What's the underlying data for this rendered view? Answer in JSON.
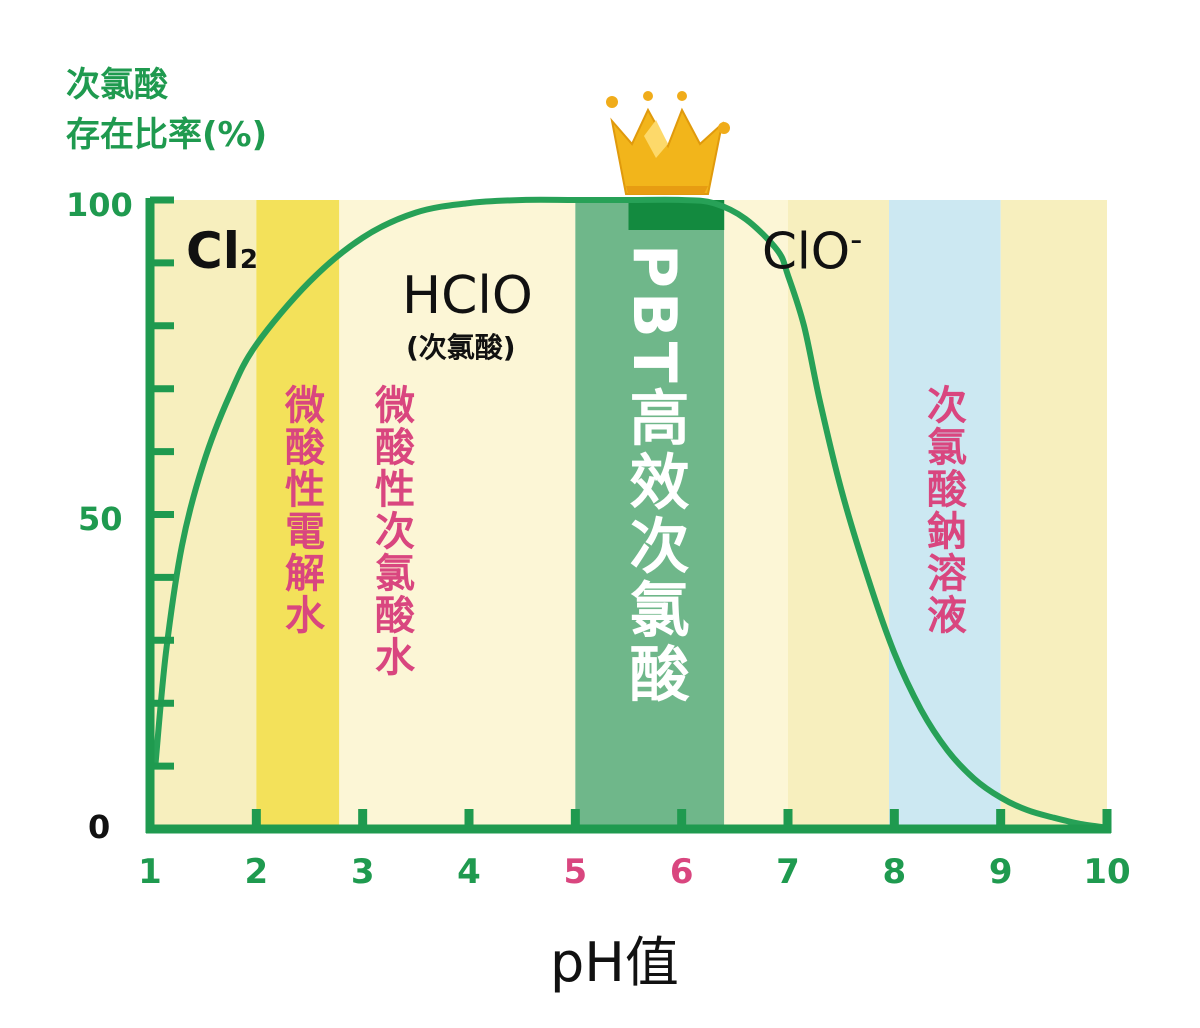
{
  "chart_data": {
    "type": "line",
    "ylabel_line1": "次氯酸",
    "ylabel_line2": "存在比率(%)",
    "xlabel": "pH值",
    "xlim": [
      1,
      10
    ],
    "ylim": [
      0,
      100
    ],
    "yticks": [
      "100",
      "50",
      "0"
    ],
    "xticks": [
      "1",
      "2",
      "3",
      "4",
      "5",
      "6",
      "7",
      "8",
      "9",
      "10"
    ],
    "highlight_xticks": [
      "5",
      "6"
    ],
    "series": [
      {
        "x": [
          1.05,
          1.15,
          1.3,
          1.5,
          1.75,
          2.0,
          2.5,
          3.0,
          3.5,
          4.0,
          4.5,
          5.0,
          5.5,
          6.0,
          6.3,
          6.6,
          6.9,
          7.0,
          7.15,
          7.3,
          7.5,
          7.75,
          8.0,
          8.25,
          8.5,
          8.75,
          9.0,
          9.25,
          9.5,
          9.75,
          10.0
        ],
        "y": [
          10,
          28,
          45,
          58,
          69,
          77,
          87,
          94,
          98,
          99.5,
          100,
          100,
          100,
          100,
          99.5,
          97,
          92,
          88,
          80,
          68,
          54,
          40,
          28,
          19,
          12.5,
          8,
          5,
          3,
          1.8,
          0.8,
          0.2
        ]
      }
    ],
    "bands": [
      {
        "from": 1.0,
        "to": 2.0,
        "color": "#f7efbe"
      },
      {
        "from": 2.0,
        "to": 2.78,
        "color": "#f3e15a"
      },
      {
        "from": 2.78,
        "to": 5.0,
        "color": "#fcf6d6"
      },
      {
        "from": 5.0,
        "to": 6.4,
        "color": "#6fb78a"
      },
      {
        "from": 6.4,
        "to": 7.0,
        "color": "#fcf6d6"
      },
      {
        "from": 7.0,
        "to": 7.95,
        "color": "#f7efbe"
      },
      {
        "from": 7.95,
        "to": 9.0,
        "color": "#cce8f2"
      },
      {
        "from": 9.0,
        "to": 10.0,
        "color": "#f7efbe"
      }
    ],
    "colors": {
      "axis": "#1f9a4f",
      "curve": "#27a157",
      "pink": "#d9467f",
      "black": "#111111"
    },
    "labels": {
      "cl2_main": "Cl",
      "cl2_sub": "2",
      "hclo": "HClO",
      "hclo_sub": "(次氯酸)",
      "clo_main": "ClO",
      "clo_sup": "-",
      "weak_acid_electrolyzed": "微酸性電解水",
      "weak_acid_hclo": "微酸性次氯酸水",
      "pbt": "PBT高效次氯酸",
      "sodium": "次氯酸鈉溶液"
    },
    "icon": "crown-icon"
  }
}
